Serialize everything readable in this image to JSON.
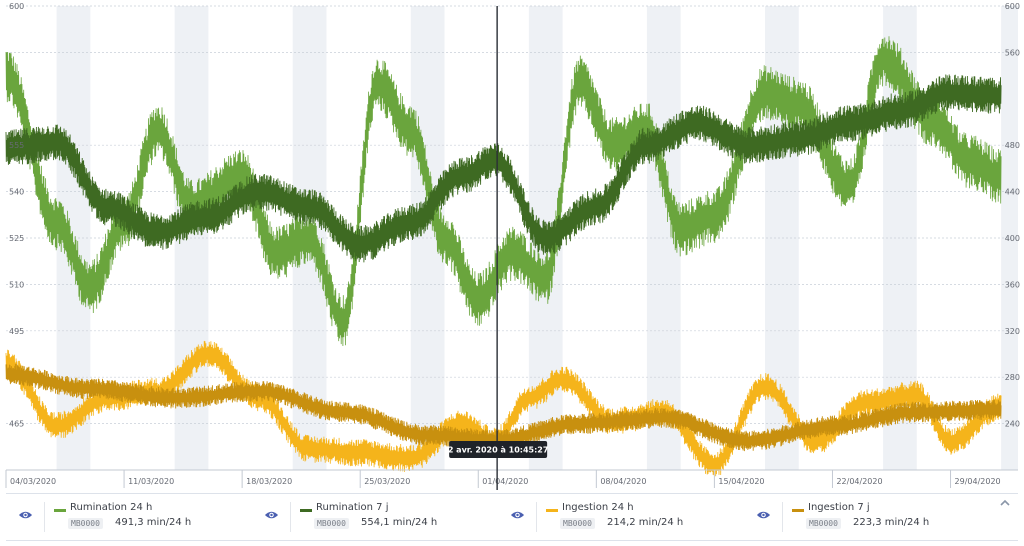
{
  "chart_data": {
    "type": "line",
    "left_axis": {
      "ticks": [
        "600",
        "555",
        "540",
        "525",
        "510",
        "495",
        "465"
      ],
      "min": 450,
      "max": 600
    },
    "right_axis": {
      "ticks": [
        "600",
        "560",
        "480",
        "440",
        "400",
        "360",
        "320",
        "280",
        "240"
      ],
      "min": 200,
      "max": 600
    },
    "x_axis": {
      "start": "2020-03-04",
      "end": "2020-05-03",
      "ticks": [
        "04/03/2020",
        "11/03/2020",
        "18/03/2020",
        "25/03/2020",
        "01/04/2020",
        "08/04/2020",
        "15/04/2020",
        "22/04/2020",
        "29/04/2020"
      ]
    },
    "grid": true,
    "crosshair": {
      "date": "2020-04-02",
      "label": "2 avr. 2020 à 10:45:27"
    },
    "series": [
      {
        "name": "Rumination 24 h",
        "color": "#6aa53d",
        "axis": "left",
        "dates": [
          "2020-03-04",
          "2020-03-07",
          "2020-03-09",
          "2020-03-11",
          "2020-03-13",
          "2020-03-15",
          "2020-03-18",
          "2020-03-20",
          "2020-03-22",
          "2020-03-24",
          "2020-03-26",
          "2020-03-28",
          "2020-03-30",
          "2020-04-01",
          "2020-04-03",
          "2020-04-05",
          "2020-04-07",
          "2020-04-09",
          "2020-04-11",
          "2020-04-13",
          "2020-04-15",
          "2020-04-18",
          "2020-04-20",
          "2020-04-23",
          "2020-04-25",
          "2020-04-28",
          "2020-04-30",
          "2020-05-02"
        ],
        "values": [
          578,
          530,
          509,
          530,
          560,
          535,
          545,
          520,
          525,
          498,
          575,
          560,
          525,
          505,
          520,
          512,
          575,
          555,
          560,
          528,
          532,
          572,
          568,
          542,
          583,
          563,
          550,
          545
        ]
      },
      {
        "name": "Rumination 7 j",
        "color": "#3e6a22",
        "axis": "left",
        "dates": [
          "2020-03-04",
          "2020-03-07",
          "2020-03-10",
          "2020-03-13",
          "2020-03-16",
          "2020-03-19",
          "2020-03-22",
          "2020-03-25",
          "2020-03-28",
          "2020-03-31",
          "2020-04-02",
          "2020-04-05",
          "2020-04-08",
          "2020-04-11",
          "2020-04-14",
          "2020-04-17",
          "2020-04-20",
          "2020-04-23",
          "2020-04-26",
          "2020-04-29",
          "2020-05-02"
        ],
        "values": [
          554,
          556,
          535,
          527,
          532,
          540,
          535,
          523,
          530,
          545,
          550,
          525,
          535,
          555,
          562,
          555,
          557,
          562,
          566,
          572,
          571
        ]
      },
      {
        "name": "Ingestion 24 h",
        "color": "#f5b41b",
        "axis": "right",
        "dates": [
          "2020-03-04",
          "2020-03-07",
          "2020-03-10",
          "2020-03-13",
          "2020-03-16",
          "2020-03-19",
          "2020-03-22",
          "2020-03-25",
          "2020-03-28",
          "2020-03-31",
          "2020-04-02",
          "2020-04-04",
          "2020-04-06",
          "2020-04-09",
          "2020-04-12",
          "2020-04-15",
          "2020-04-18",
          "2020-04-21",
          "2020-04-24",
          "2020-04-27",
          "2020-04-29",
          "2020-05-02"
        ],
        "values": [
          292,
          238,
          262,
          268,
          300,
          262,
          218,
          215,
          210,
          240,
          225,
          262,
          278,
          242,
          250,
          205,
          272,
          225,
          258,
          265,
          225,
          255
        ]
      },
      {
        "name": "Ingestion 7 j",
        "color": "#c8900f",
        "axis": "right",
        "dates": [
          "2020-03-04",
          "2020-03-09",
          "2020-03-14",
          "2020-03-19",
          "2020-03-24",
          "2020-03-29",
          "2020-04-02",
          "2020-04-07",
          "2020-04-12",
          "2020-04-17",
          "2020-04-22",
          "2020-04-27",
          "2020-05-02"
        ],
        "values": [
          283,
          270,
          262,
          268,
          250,
          230,
          226,
          240,
          245,
          225,
          238,
          250,
          252
        ]
      }
    ]
  },
  "legend": [
    {
      "name": "Rumination 24 h",
      "color": "#6aa53d",
      "device": "MB0000",
      "value": "491,3 min/24 h"
    },
    {
      "name": "Rumination 7 j",
      "color": "#3e6a22",
      "device": "MB0000",
      "value": "554,1 min/24 h"
    },
    {
      "name": "Ingestion 24 h",
      "color": "#f5b41b",
      "device": "MB0000",
      "value": "214,2 min/24 h"
    },
    {
      "name": "Ingestion 7 j",
      "color": "#c8900f",
      "device": "MB0000",
      "value": "223,3 min/24 h"
    }
  ],
  "icons": {
    "visibility": "eye-icon",
    "collapse": "chevron-up-icon"
  }
}
